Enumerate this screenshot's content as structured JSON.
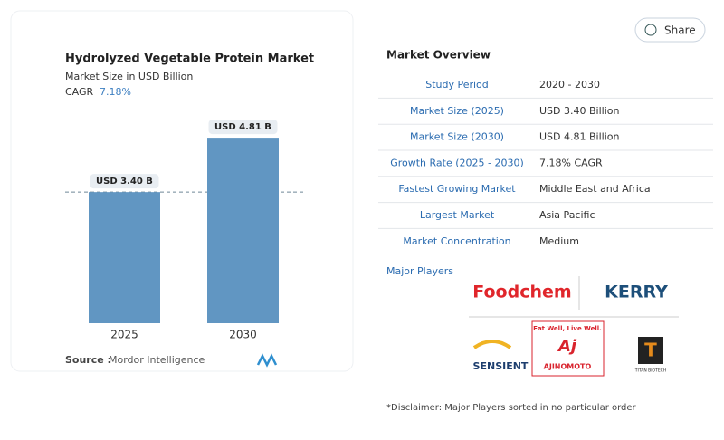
{
  "chart_data": {
    "type": "bar",
    "title": "Hydrolyzed Vegetable Protein Market",
    "subtitle": "Market Size in USD Billion",
    "cagr_label": "CAGR",
    "cagr": "7.18%",
    "categories": [
      "2025",
      "2030"
    ],
    "values": [
      3.4,
      4.81
    ],
    "value_labels": [
      "USD 3.40 B",
      "USD 4.81 B"
    ],
    "color": "#6196c2",
    "source_label": "Source :",
    "source": "Mordor Intelligence"
  },
  "share": "Share",
  "overview": {
    "title": "Market Overview",
    "rows": [
      [
        "Study Period",
        "2020 - 2030"
      ],
      [
        "Market Size (2025)",
        "USD 3.40 Billion"
      ],
      [
        "Market Size (2030)",
        "USD 4.81 Billion"
      ],
      [
        "Growth Rate (2025 - 2030)",
        "7.18% CAGR"
      ],
      [
        "Fastest Growing Market",
        "Middle East and Africa"
      ],
      [
        "Largest Market",
        "Asia Pacific"
      ],
      [
        "Market Concentration",
        "Medium"
      ]
    ]
  },
  "major_players": {
    "title": "Major Players",
    "logos": [
      "Foodchem",
      "KERRY",
      "SENSIENT",
      "Eat Well, Live Well.",
      "AJINOMOTO",
      "TITAN BIOTECH"
    ]
  },
  "disclaimer": "*Disclaimer: Major Players sorted in no particular order"
}
